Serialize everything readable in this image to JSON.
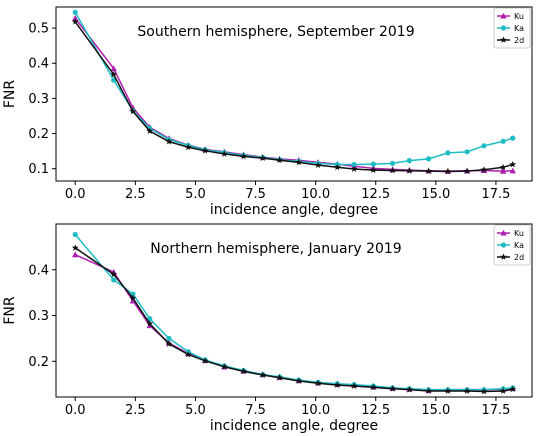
{
  "chart_data": [
    {
      "type": "line",
      "title": "Southern hemisphere, September 2019",
      "xlabel": "incidence angle, degree",
      "ylabel": "FNR",
      "xlim": [
        -0.8,
        19.0
      ],
      "ylim": [
        0.065,
        0.56
      ],
      "xticks": [
        "0.0",
        "2.5",
        "5.0",
        "7.5",
        "10.0",
        "12.5",
        "15.0",
        "17.5"
      ],
      "yticks": [
        "0.1",
        "0.2",
        "0.3",
        "0.4",
        "0.5"
      ],
      "legend_position": "top-right",
      "x": [
        0.0,
        1.6,
        2.4,
        3.1,
        3.9,
        4.7,
        5.4,
        6.2,
        7.0,
        7.8,
        8.5,
        9.3,
        10.1,
        10.9,
        11.6,
        12.4,
        13.2,
        13.9,
        14.7,
        15.5,
        16.3,
        17.0,
        17.8,
        18.2
      ],
      "series": [
        {
          "name": "Ku",
          "color": "#b020b0",
          "marker": "triangle",
          "values": [
            0.528,
            0.385,
            0.273,
            0.218,
            0.186,
            0.167,
            0.155,
            0.148,
            0.14,
            0.133,
            0.128,
            0.124,
            0.118,
            0.113,
            0.107,
            0.101,
            0.098,
            0.096,
            0.094,
            0.093,
            0.094,
            0.095,
            0.093,
            0.094
          ]
        },
        {
          "name": "Ka",
          "color": "#1ebcc4",
          "marker": "circle",
          "values": [
            0.545,
            0.352,
            0.265,
            0.215,
            0.183,
            0.166,
            0.154,
            0.146,
            0.138,
            0.132,
            0.126,
            0.121,
            0.115,
            0.112,
            0.112,
            0.113,
            0.115,
            0.123,
            0.128,
            0.145,
            0.148,
            0.165,
            0.178,
            0.187
          ]
        },
        {
          "name": "2d",
          "color": "#111111",
          "marker": "star",
          "values": [
            0.518,
            0.368,
            0.263,
            0.207,
            0.177,
            0.161,
            0.151,
            0.142,
            0.135,
            0.13,
            0.124,
            0.118,
            0.11,
            0.104,
            0.099,
            0.096,
            0.095,
            0.094,
            0.093,
            0.092,
            0.093,
            0.097,
            0.104,
            0.112
          ]
        }
      ]
    },
    {
      "type": "line",
      "title": "Northern hemisphere, January 2019",
      "xlabel": "incidence angle, degree",
      "ylabel": "FNR",
      "xlim": [
        -0.8,
        19.0
      ],
      "ylim": [
        0.122,
        0.5
      ],
      "xticks": [
        "0.0",
        "2.5",
        "5.0",
        "7.5",
        "10.0",
        "12.5",
        "15.0",
        "17.5"
      ],
      "yticks": [
        "0.2",
        "0.3",
        "0.4"
      ],
      "legend_position": "top-right",
      "x": [
        0.0,
        1.6,
        2.4,
        3.1,
        3.9,
        4.7,
        5.4,
        6.2,
        7.0,
        7.8,
        8.5,
        9.3,
        10.1,
        10.9,
        11.6,
        12.4,
        13.2,
        13.9,
        14.7,
        15.5,
        16.3,
        17.0,
        17.8,
        18.2
      ],
      "series": [
        {
          "name": "Ku",
          "color": "#b020b0",
          "marker": "triangle",
          "values": [
            0.433,
            0.395,
            0.332,
            0.278,
            0.24,
            0.217,
            0.202,
            0.188,
            0.179,
            0.171,
            0.165,
            0.158,
            0.153,
            0.15,
            0.148,
            0.144,
            0.141,
            0.139,
            0.137,
            0.138,
            0.138,
            0.138,
            0.139,
            0.141
          ]
        },
        {
          "name": "Ka",
          "color": "#1ebcc4",
          "marker": "circle",
          "values": [
            0.477,
            0.378,
            0.347,
            0.293,
            0.25,
            0.221,
            0.203,
            0.19,
            0.18,
            0.171,
            0.166,
            0.159,
            0.154,
            0.151,
            0.149,
            0.146,
            0.142,
            0.14,
            0.138,
            0.138,
            0.138,
            0.138,
            0.14,
            0.142
          ]
        },
        {
          "name": "2d",
          "color": "#111111",
          "marker": "star",
          "values": [
            0.448,
            0.39,
            0.338,
            0.282,
            0.238,
            0.215,
            0.201,
            0.188,
            0.178,
            0.17,
            0.164,
            0.157,
            0.152,
            0.148,
            0.146,
            0.143,
            0.14,
            0.138,
            0.135,
            0.135,
            0.135,
            0.134,
            0.135,
            0.139
          ]
        }
      ]
    }
  ]
}
